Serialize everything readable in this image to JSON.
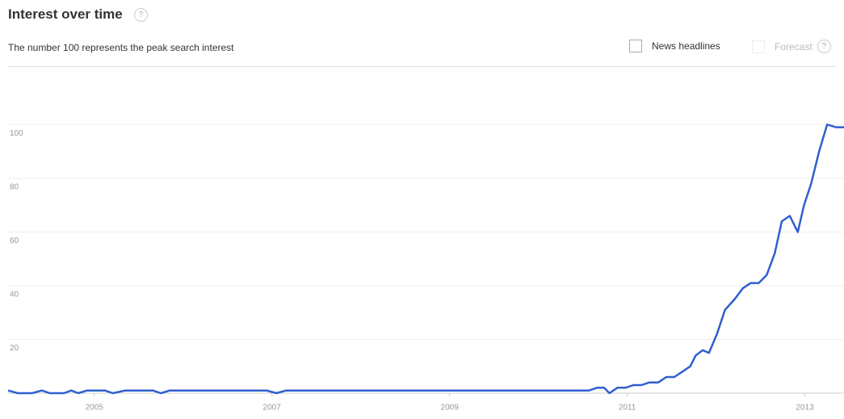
{
  "header": {
    "help": "?",
    "news_checkbox": "News headlines",
    "forecast_checkbox": "Forecast"
  },
  "chart_data": {
    "type": "line",
    "title": "Interest over time",
    "subtitle": "The number 100 represents the peak search interest",
    "x": [
      2004.03,
      2004.14,
      2004.3,
      2004.41,
      2004.5,
      2004.66,
      2004.74,
      2004.82,
      2004.92,
      2005.12,
      2005.21,
      2005.35,
      2005.66,
      2005.75,
      2005.85,
      2006.94,
      2007.05,
      2007.16,
      2010.48,
      2010.57,
      2010.66,
      2010.74,
      2010.8,
      2010.89,
      2010.98,
      2011.07,
      2011.16,
      2011.25,
      2011.35,
      2011.44,
      2011.53,
      2011.62,
      2011.71,
      2011.77,
      2011.85,
      2011.92,
      2012.01,
      2012.1,
      2012.21,
      2012.3,
      2012.39,
      2012.48,
      2012.57,
      2012.66,
      2012.74,
      2012.83,
      2012.92,
      2012.99,
      2013.07,
      2013.16,
      2013.25,
      2013.35,
      2013.44
    ],
    "values": [
      1,
      0,
      0,
      1,
      0,
      0,
      1,
      0,
      1,
      1,
      0,
      1,
      1,
      0,
      1,
      1,
      0,
      1,
      1,
      1,
      2,
      2,
      0,
      2,
      2,
      3,
      3,
      4,
      4,
      6,
      6,
      8,
      10,
      14,
      16,
      15,
      22,
      31,
      35,
      39,
      41,
      41,
      44,
      52,
      64,
      66,
      60,
      70,
      78,
      90,
      100,
      99,
      99
    ],
    "color": "#2f5fd0",
    "xlim": [
      2004.03,
      2013.44
    ],
    "xticks": [
      2005,
      2007,
      2009,
      2011,
      2013
    ],
    "ylim": [
      0,
      110
    ],
    "yticks": [
      20,
      40,
      60,
      80,
      100
    ],
    "grid": true
  }
}
